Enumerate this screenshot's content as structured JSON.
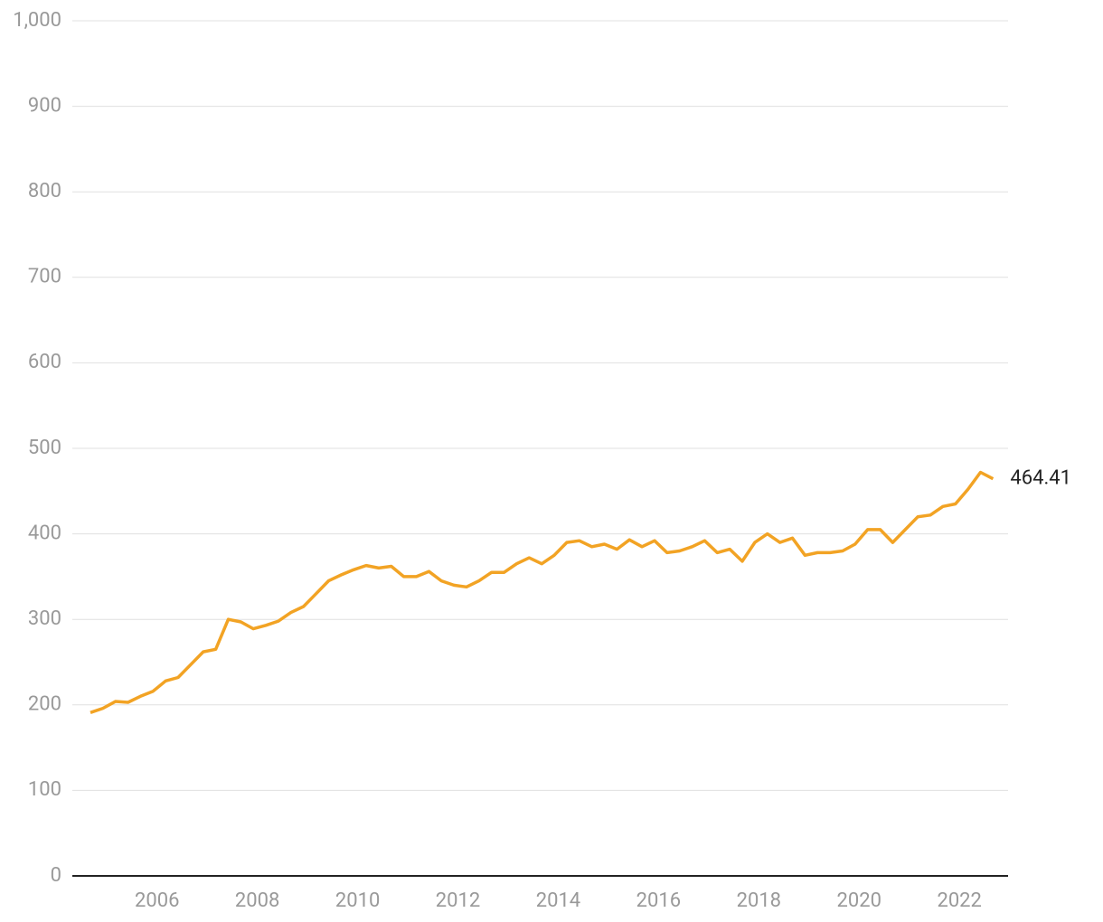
{
  "chart_data": {
    "type": "line",
    "x": [
      2004.67,
      2004.92,
      2005.17,
      2005.42,
      2005.67,
      2005.92,
      2006.17,
      2006.42,
      2006.67,
      2006.92,
      2007.17,
      2007.42,
      2007.67,
      2007.92,
      2008.17,
      2008.42,
      2008.67,
      2008.92,
      2009.17,
      2009.42,
      2009.67,
      2009.92,
      2010.17,
      2010.42,
      2010.67,
      2010.92,
      2011.17,
      2011.42,
      2011.67,
      2011.92,
      2012.17,
      2012.42,
      2012.67,
      2012.92,
      2013.17,
      2013.42,
      2013.67,
      2013.92,
      2014.17,
      2014.42,
      2014.67,
      2014.92,
      2015.17,
      2015.42,
      2015.67,
      2015.92,
      2016.17,
      2016.42,
      2016.67,
      2016.92,
      2017.17,
      2017.42,
      2017.67,
      2017.92,
      2018.17,
      2018.42,
      2018.67,
      2018.92,
      2019.17,
      2019.42,
      2019.67,
      2019.92,
      2020.17,
      2020.42,
      2020.67,
      2020.92,
      2021.17,
      2021.42,
      2021.67,
      2021.92,
      2022.17,
      2022.42,
      2022.67
    ],
    "series": [
      {
        "color": "#f2a324",
        "values": [
          191,
          196,
          204,
          203,
          210,
          216,
          228,
          232,
          247,
          262,
          265,
          300,
          297,
          289,
          293,
          298,
          308,
          315,
          330,
          345,
          352,
          358,
          363,
          360,
          362,
          350,
          350,
          356,
          345,
          340,
          338,
          345,
          355,
          355,
          365,
          372,
          365,
          375,
          390,
          392,
          385,
          388,
          382,
          393,
          385,
          392,
          378,
          380,
          385,
          392,
          378,
          382,
          368,
          390,
          400,
          390,
          395,
          375,
          378,
          378,
          380,
          388,
          405,
          405,
          390,
          405,
          420,
          422,
          432,
          435,
          452,
          472,
          464.41
        ]
      }
    ],
    "xlim": [
      2004.31,
      2022.97
    ],
    "xticks": [
      2006,
      2008,
      2010,
      2012,
      2014,
      2016,
      2018,
      2020,
      2022
    ],
    "ylim": [
      0,
      1000
    ],
    "yticks": [
      0,
      100,
      200,
      300,
      400,
      500,
      600,
      700,
      800,
      900,
      {
        "value": 1000,
        "label": "1,000"
      }
    ],
    "grid": true
  }
}
